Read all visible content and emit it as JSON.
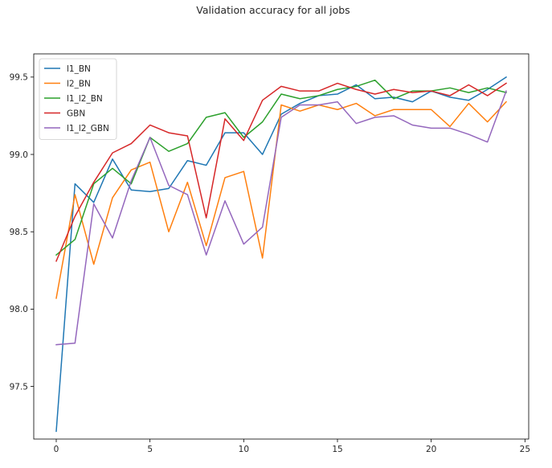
{
  "chart_data": {
    "type": "line",
    "title": "Validation accuracy for all jobs",
    "xlabel": "",
    "ylabel": "",
    "xlim": [
      -1.2,
      25.2
    ],
    "ylim": [
      97.16,
      99.65
    ],
    "xticks": [
      0,
      5,
      10,
      15,
      20,
      25
    ],
    "yticks": [
      97.5,
      98.0,
      98.5,
      99.0,
      99.5
    ],
    "ytick_labels": [
      "97.5",
      "98.0",
      "98.5",
      "99.0",
      "99.5"
    ],
    "grid": false,
    "legend_position": "top-left",
    "x": [
      0,
      1,
      2,
      3,
      4,
      5,
      6,
      7,
      8,
      9,
      10,
      11,
      12,
      13,
      14,
      15,
      16,
      17,
      18,
      19,
      20,
      21,
      22,
      23,
      24
    ],
    "series": [
      {
        "name": "l1_BN",
        "color": "#1f77b4",
        "values": [
          97.21,
          98.81,
          98.69,
          98.97,
          98.77,
          98.76,
          98.78,
          98.96,
          98.93,
          99.14,
          99.14,
          99.0,
          99.26,
          99.33,
          99.38,
          99.39,
          99.45,
          99.36,
          99.37,
          99.34,
          99.41,
          99.37,
          99.35,
          99.42,
          99.5
        ]
      },
      {
        "name": "l2_BN",
        "color": "#ff7f0e",
        "values": [
          98.07,
          98.74,
          98.29,
          98.72,
          98.9,
          98.95,
          98.5,
          98.82,
          98.41,
          98.85,
          98.89,
          98.33,
          99.32,
          99.28,
          99.32,
          99.29,
          99.33,
          99.25,
          99.29,
          99.29,
          99.29,
          99.18,
          99.33,
          99.21,
          99.34
        ]
      },
      {
        "name": "l1_l2_BN",
        "color": "#2ca02c",
        "values": [
          98.35,
          98.45,
          98.81,
          98.91,
          98.81,
          99.11,
          99.02,
          99.07,
          99.24,
          99.27,
          99.11,
          99.21,
          99.39,
          99.36,
          99.38,
          99.42,
          99.44,
          99.48,
          99.36,
          99.41,
          99.41,
          99.43,
          99.4,
          99.43,
          99.4
        ]
      },
      {
        "name": "GBN",
        "color": "#d62728",
        "values": [
          98.31,
          98.6,
          98.82,
          99.01,
          99.07,
          99.19,
          99.14,
          99.12,
          98.59,
          99.23,
          99.09,
          99.35,
          99.44,
          99.41,
          99.41,
          99.46,
          99.42,
          99.39,
          99.42,
          99.4,
          99.41,
          99.38,
          99.45,
          99.38,
          99.46
        ]
      },
      {
        "name": "l1_l2_GBN",
        "color": "#9467bd",
        "values": [
          97.77,
          97.78,
          98.68,
          98.46,
          98.83,
          99.11,
          98.8,
          98.74,
          98.35,
          98.7,
          98.42,
          98.53,
          99.24,
          99.32,
          99.32,
          99.34,
          99.2,
          99.24,
          99.25,
          99.19,
          99.17,
          99.17,
          99.13,
          99.08,
          99.41
        ]
      }
    ]
  }
}
